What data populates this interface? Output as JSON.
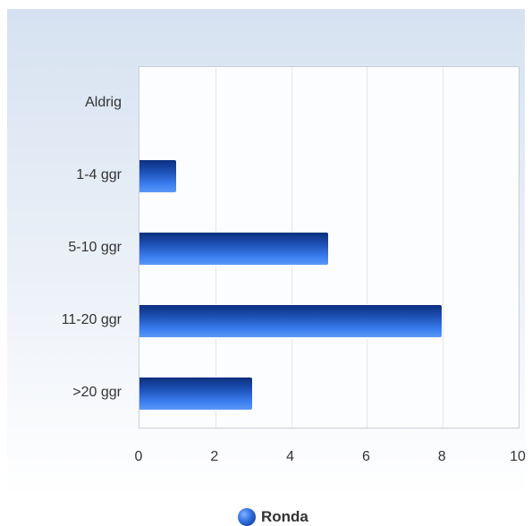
{
  "chart_data": {
    "type": "bar",
    "orientation": "horizontal",
    "categories": [
      "Aldrig",
      "1-4 ggr",
      "5-10 ggr",
      "11-20 ggr",
      ">20 ggr"
    ],
    "series": [
      {
        "name": "Ronda",
        "values": [
          0,
          1,
          5,
          8,
          3
        ]
      }
    ],
    "xlim": [
      0,
      10
    ],
    "xticks": [
      "0",
      "2",
      "4",
      "6",
      "8",
      "10"
    ],
    "grid": true,
    "legend_position": "bottom",
    "colors": {
      "bar": "#1c4fb4",
      "background_top": "#d6e2f1",
      "text": "#333333"
    }
  }
}
